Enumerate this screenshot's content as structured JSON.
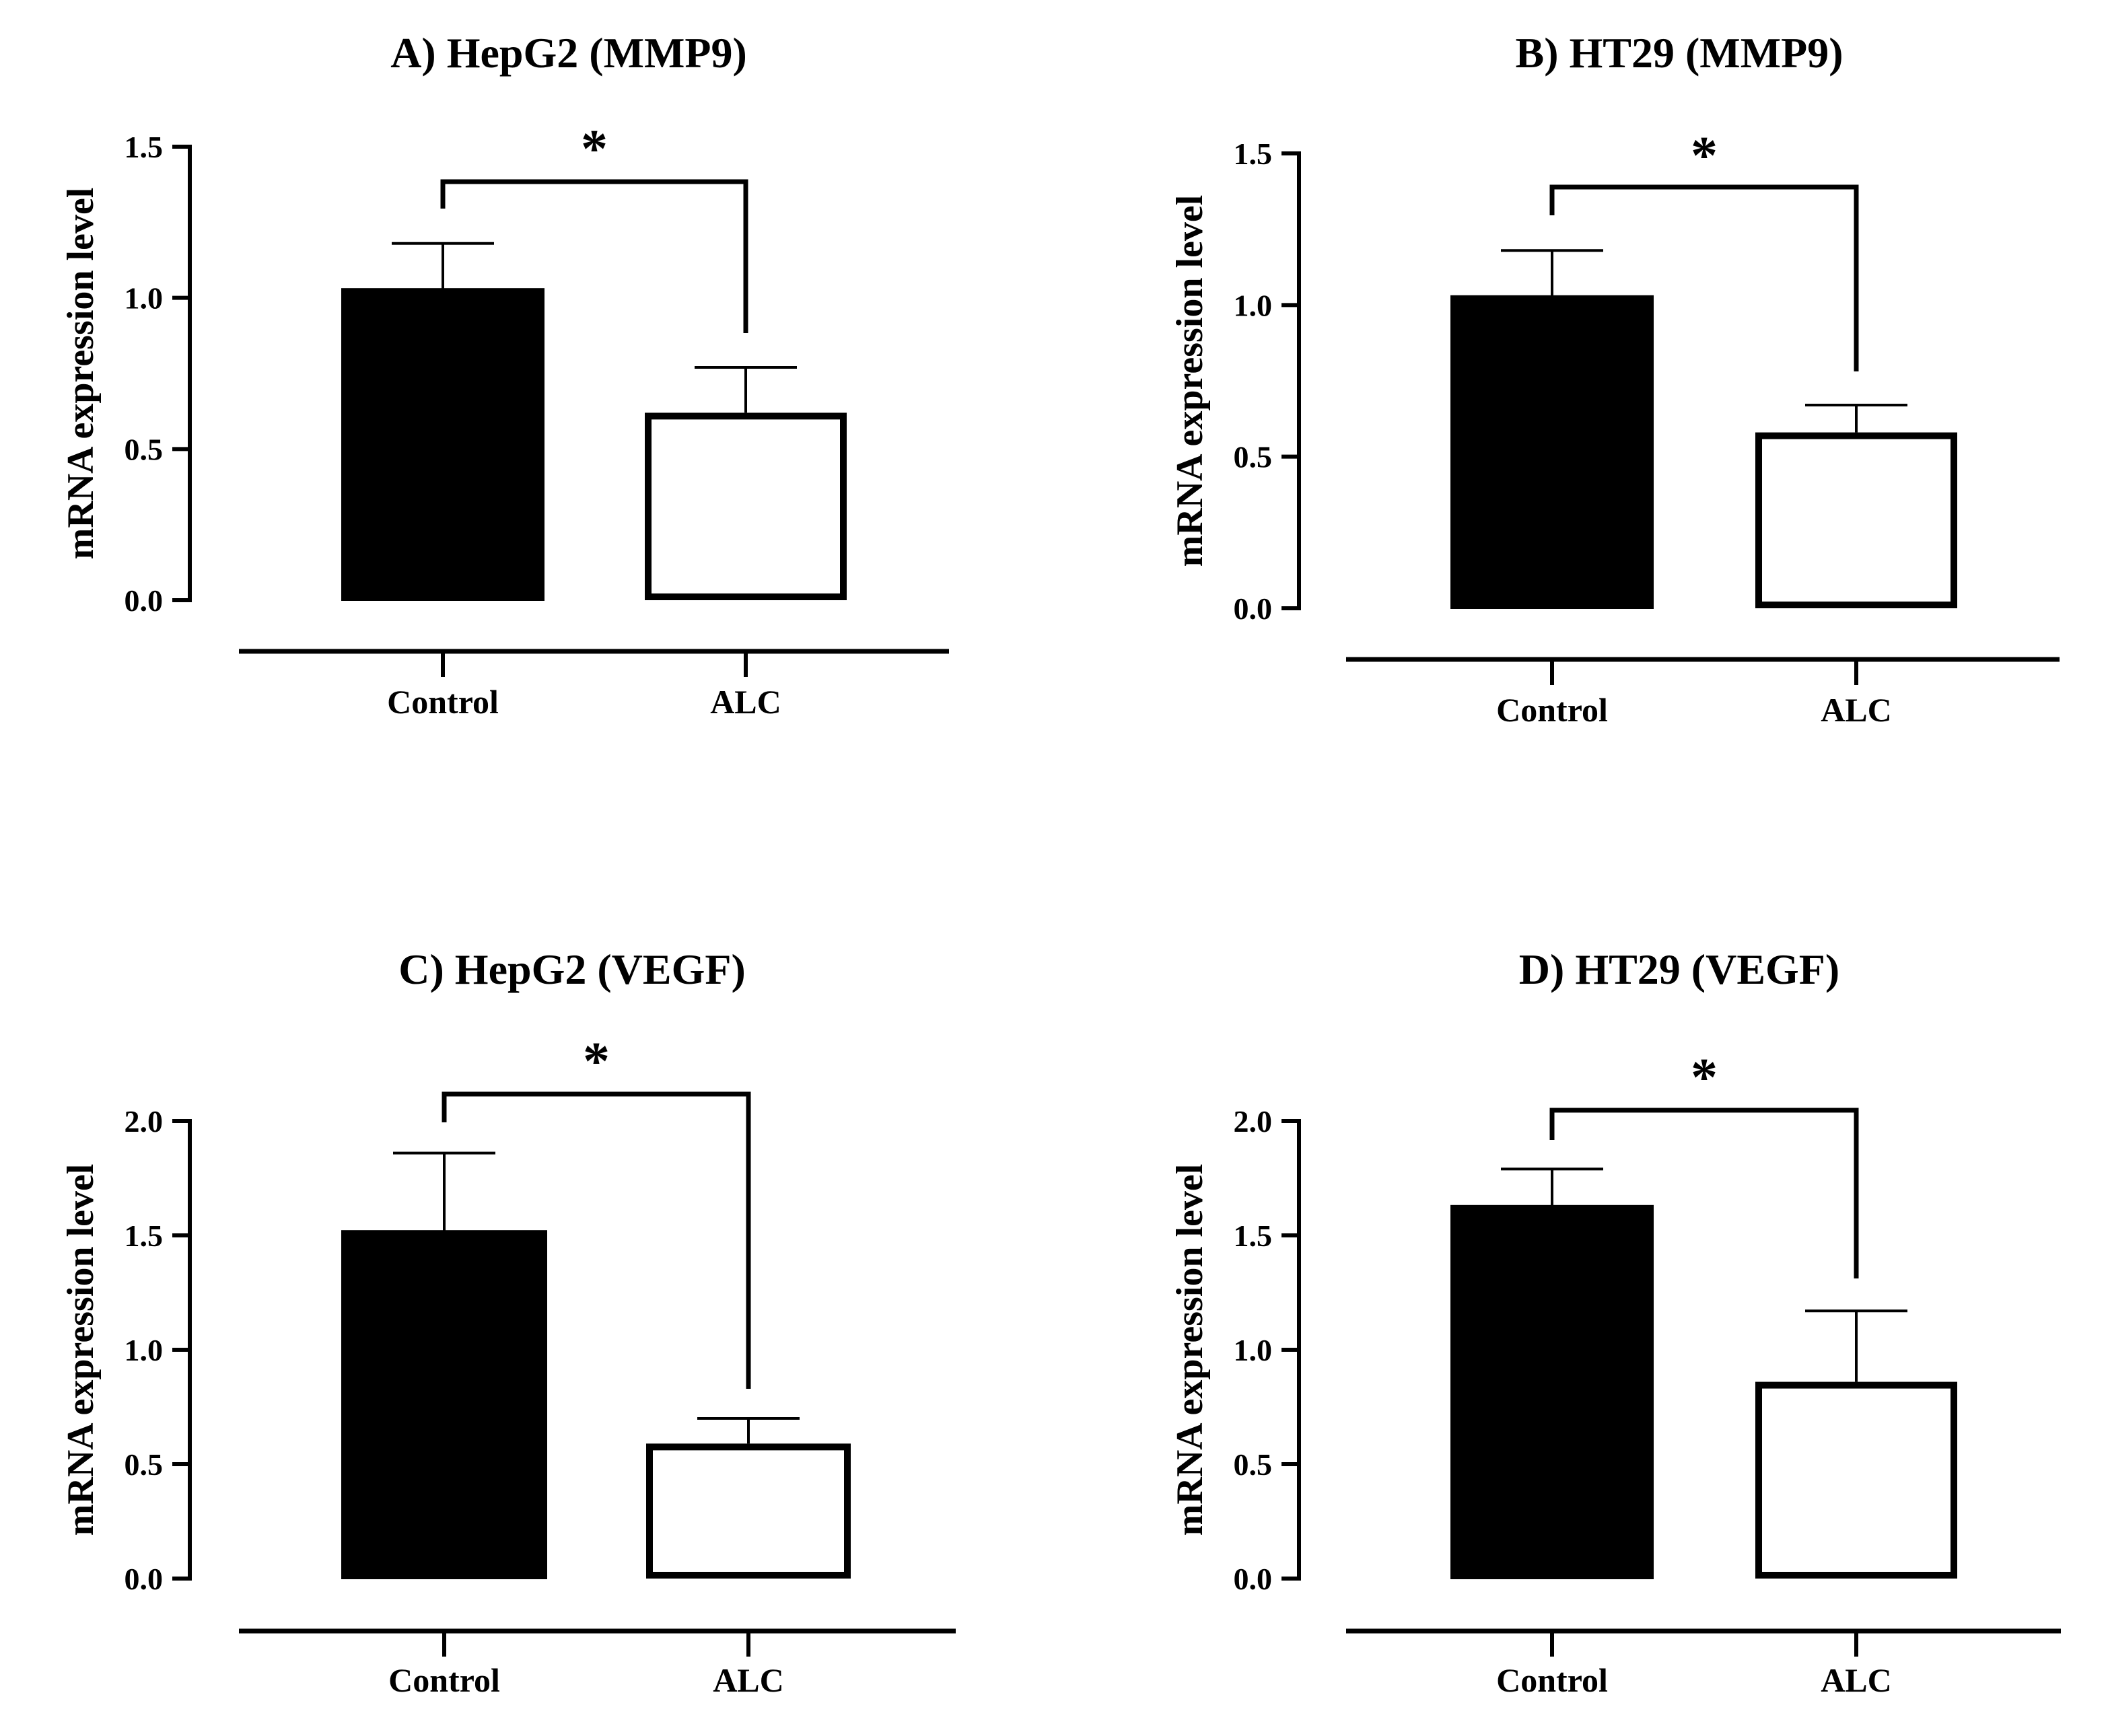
{
  "chart_data": [
    {
      "type": "bar",
      "title": "A) HepG2 (MMP9)",
      "ylabel": "mRNA expression level",
      "xlabel": "",
      "categories": [
        "Control",
        "ALC"
      ],
      "values": [
        1.03,
        0.62
      ],
      "errors": [
        0.15,
        0.15
      ],
      "ylim": [
        0,
        1.5
      ],
      "yticks": [
        "0.0",
        "0.5",
        "1.0",
        "1.5"
      ],
      "significance": "*",
      "grid": false,
      "fills": [
        "#000000",
        "#ffffff"
      ]
    },
    {
      "type": "bar",
      "title": "B) HT29 (MMP9)",
      "ylabel": "mRNA expression level",
      "xlabel": "",
      "categories": [
        "Control",
        "ALC"
      ],
      "values": [
        1.03,
        0.58
      ],
      "errors": [
        0.15,
        0.09
      ],
      "ylim": [
        0,
        1.5
      ],
      "yticks": [
        "0.0",
        "0.5",
        "1.0",
        "1.5"
      ],
      "significance": "*",
      "grid": false,
      "fills": [
        "#000000",
        "#ffffff"
      ]
    },
    {
      "type": "bar",
      "title": "C) HepG2 (VEGF)",
      "ylabel": "mRNA expression level",
      "xlabel": "",
      "categories": [
        "Control",
        "ALC"
      ],
      "values": [
        1.52,
        0.59
      ],
      "errors": [
        0.34,
        0.11
      ],
      "ylim": [
        0,
        2.0
      ],
      "yticks": [
        "0.0",
        "0.5",
        "1.0",
        "1.5",
        "2.0"
      ],
      "significance": "*",
      "grid": false,
      "fills": [
        "#000000",
        "#ffffff"
      ]
    },
    {
      "type": "bar",
      "title": "D) HT29 (VEGF)",
      "ylabel": "mRNA expression level",
      "xlabel": "",
      "categories": [
        "Control",
        "ALC"
      ],
      "values": [
        1.63,
        0.86
      ],
      "errors": [
        0.16,
        0.31
      ],
      "ylim": [
        0,
        2.0
      ],
      "yticks": [
        "0.0",
        "0.5",
        "1.0",
        "1.5",
        "2.0"
      ],
      "significance": "*",
      "grid": false,
      "fills": [
        "#000000",
        "#ffffff"
      ]
    }
  ]
}
